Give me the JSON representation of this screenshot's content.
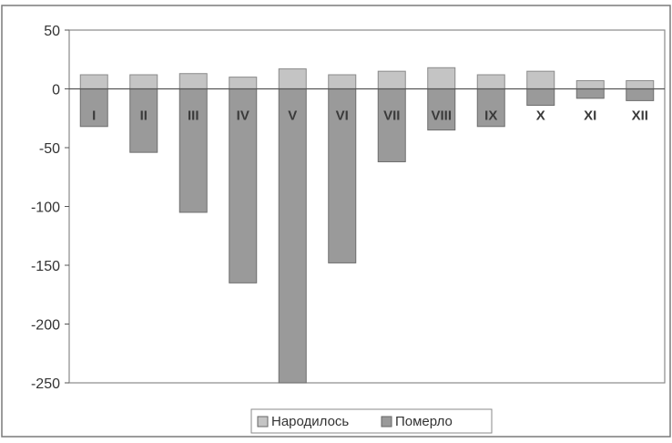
{
  "chart_data": {
    "type": "bar",
    "categories": [
      "I",
      "II",
      "III",
      "IV",
      "V",
      "VI",
      "VII",
      "VIII",
      "IX",
      "X",
      "XI",
      "XII"
    ],
    "series": [
      {
        "name": "Народилось",
        "values": [
          12,
          12,
          13,
          10,
          17,
          12,
          15,
          18,
          12,
          15,
          7,
          7
        ],
        "color": "#c4c4c4"
      },
      {
        "name": "Померло",
        "values": [
          -32,
          -54,
          -105,
          -165,
          -250,
          -148,
          -62,
          -35,
          -32,
          -14,
          -8,
          -10
        ],
        "color": "#9a9a9a"
      }
    ],
    "yticks": [
      50,
      0,
      -50,
      -100,
      -150,
      -200,
      -250
    ],
    "ylim": [
      -250,
      50
    ],
    "grid": false,
    "legend_position": "bottom",
    "title": "",
    "xlabel": "",
    "ylabel": ""
  }
}
